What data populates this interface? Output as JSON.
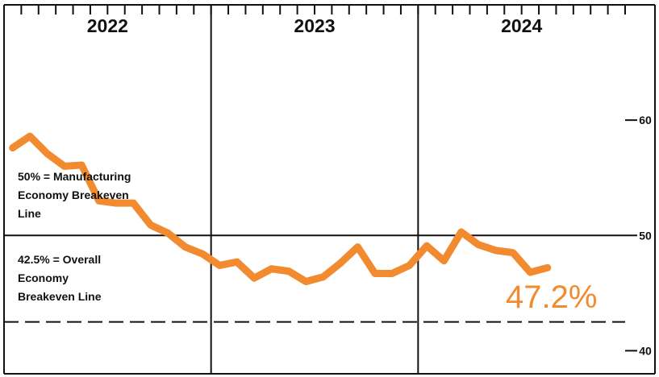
{
  "chart_data": {
    "type": "line",
    "title": "",
    "xlabel": "",
    "ylabel": "",
    "years": [
      "2022",
      "2023",
      "2024"
    ],
    "ylim": [
      38,
      70
    ],
    "yticks": [
      40,
      50,
      60
    ],
    "grid": "vertical year dividers and solid line at 50",
    "series": [
      {
        "color": "#f28a30",
        "x": [
          "2022-01",
          "2022-02",
          "2022-03",
          "2022-04",
          "2022-05",
          "2022-06",
          "2022-07",
          "2022-08",
          "2022-09",
          "2022-10",
          "2022-11",
          "2022-12",
          "2023-01",
          "2023-02",
          "2023-03",
          "2023-04",
          "2023-05",
          "2023-06",
          "2023-07",
          "2023-08",
          "2023-09",
          "2023-10",
          "2023-11",
          "2023-12",
          "2024-01",
          "2024-02",
          "2024-03",
          "2024-04",
          "2024-05",
          "2024-06",
          "2024-07",
          "2024-08"
        ],
        "values": [
          57.6,
          58.6,
          57.1,
          56.0,
          56.1,
          53.0,
          52.8,
          52.8,
          50.9,
          50.2,
          49.0,
          48.4,
          47.4,
          47.7,
          46.3,
          47.1,
          46.9,
          46.0,
          46.4,
          47.6,
          49.0,
          46.7,
          46.7,
          47.4,
          49.1,
          47.8,
          50.3,
          49.2,
          48.7,
          48.5,
          46.8,
          47.2
        ]
      }
    ],
    "reference_lines": [
      {
        "value": 50,
        "style": "solid",
        "label": "50% = Manufacturing Economy Breakeven Line",
        "label_lines": [
          "50% = Manufacturing",
          "Economy Breakeven",
          "Line"
        ]
      },
      {
        "value": 42.5,
        "style": "dashed",
        "label": "42.5% = Overall Economy Breakeven Line",
        "label_lines": [
          "42.5% = Overall",
          "Economy",
          "Breakeven Line"
        ]
      }
    ],
    "last_value_label": "47.2%"
  }
}
